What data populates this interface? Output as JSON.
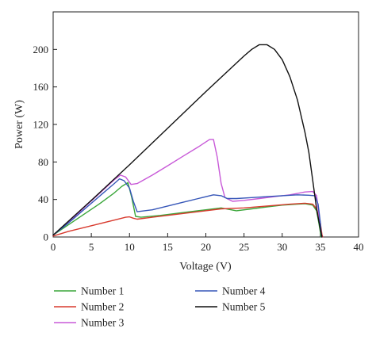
{
  "chart_data": {
    "type": "line",
    "xlabel": "Voltage (V)",
    "ylabel": "Power (W)",
    "xlim": [
      0,
      40
    ],
    "ylim": [
      0,
      240
    ],
    "x_ticks": [
      "0",
      "5",
      "10",
      "15",
      "20",
      "25",
      "30",
      "35",
      "40"
    ],
    "y_ticks": [
      "0",
      "40",
      "80",
      "120",
      "160",
      "200"
    ],
    "legend_placement": "bottom",
    "grid": false,
    "series": [
      {
        "name": "Number 1",
        "color": "#3aa63a",
        "points": [
          [
            0,
            2
          ],
          [
            2,
            13
          ],
          [
            4,
            24
          ],
          [
            6,
            35
          ],
          [
            8,
            47
          ],
          [
            9,
            54
          ],
          [
            9.8,
            58
          ],
          [
            10.3,
            42
          ],
          [
            10.8,
            22
          ],
          [
            11.5,
            21
          ],
          [
            14,
            23
          ],
          [
            17,
            26
          ],
          [
            20,
            29
          ],
          [
            22,
            31
          ],
          [
            24,
            28
          ],
          [
            26,
            30
          ],
          [
            28,
            32
          ],
          [
            30,
            34
          ],
          [
            32,
            35
          ],
          [
            33,
            35.5
          ],
          [
            34,
            34
          ],
          [
            34.5,
            28
          ],
          [
            34.8,
            15
          ],
          [
            35,
            5
          ],
          [
            35.1,
            0
          ]
        ]
      },
      {
        "name": "Number 2",
        "color": "#d83a2e",
        "points": [
          [
            0,
            1
          ],
          [
            2,
            6
          ],
          [
            4,
            10
          ],
          [
            6,
            14
          ],
          [
            8,
            18
          ],
          [
            9.5,
            21
          ],
          [
            10,
            21.5
          ],
          [
            10.5,
            20
          ],
          [
            11,
            19
          ],
          [
            13,
            21
          ],
          [
            16,
            24
          ],
          [
            19,
            27
          ],
          [
            22,
            30
          ],
          [
            25,
            31
          ],
          [
            28,
            33
          ],
          [
            31,
            35
          ],
          [
            33,
            36
          ],
          [
            34,
            35
          ],
          [
            34.5,
            30
          ],
          [
            35,
            15
          ],
          [
            35.2,
            3
          ],
          [
            35.3,
            0
          ]
        ]
      },
      {
        "name": "Number 3",
        "color": "#c85ad8",
        "points": [
          [
            0,
            2
          ],
          [
            2,
            16
          ],
          [
            4,
            31
          ],
          [
            6,
            46
          ],
          [
            8,
            61
          ],
          [
            8.8,
            66
          ],
          [
            9.5,
            64
          ],
          [
            10.2,
            56
          ],
          [
            11,
            57
          ],
          [
            13,
            66
          ],
          [
            15,
            76
          ],
          [
            17,
            86
          ],
          [
            19,
            96
          ],
          [
            20.5,
            104
          ],
          [
            21,
            104
          ],
          [
            21.5,
            85
          ],
          [
            22,
            57
          ],
          [
            22.5,
            42
          ],
          [
            23.5,
            38
          ],
          [
            25,
            39
          ],
          [
            27,
            41
          ],
          [
            29,
            43
          ],
          [
            31,
            45
          ],
          [
            33,
            48
          ],
          [
            34,
            48.5
          ],
          [
            34.5,
            44
          ],
          [
            34.8,
            25
          ],
          [
            35,
            8
          ],
          [
            35.2,
            0
          ]
        ]
      },
      {
        "name": "Number 4",
        "color": "#3656b8",
        "points": [
          [
            0,
            2
          ],
          [
            2,
            15
          ],
          [
            4,
            29
          ],
          [
            6,
            43
          ],
          [
            8,
            57
          ],
          [
            8.7,
            62
          ],
          [
            9.3,
            60
          ],
          [
            10,
            52
          ],
          [
            10.5,
            38
          ],
          [
            11,
            27
          ],
          [
            13,
            29
          ],
          [
            15,
            33
          ],
          [
            17,
            37
          ],
          [
            19,
            41
          ],
          [
            21,
            45
          ],
          [
            22,
            44
          ],
          [
            22.8,
            41
          ],
          [
            24,
            41
          ],
          [
            26,
            42
          ],
          [
            28,
            43
          ],
          [
            30,
            44
          ],
          [
            32,
            45
          ],
          [
            33.5,
            44.5
          ],
          [
            34.3,
            44
          ],
          [
            34.7,
            35
          ],
          [
            35,
            15
          ],
          [
            35.1,
            5
          ],
          [
            35.2,
            0
          ]
        ]
      },
      {
        "name": "Number 5",
        "color": "#111111",
        "points": [
          [
            0,
            2
          ],
          [
            5,
            39
          ],
          [
            10,
            77
          ],
          [
            15,
            116
          ],
          [
            20,
            155
          ],
          [
            25,
            193
          ],
          [
            26,
            200
          ],
          [
            27,
            205
          ],
          [
            28,
            205
          ],
          [
            29,
            200
          ],
          [
            30,
            189
          ],
          [
            31,
            171
          ],
          [
            32,
            146
          ],
          [
            33,
            111
          ],
          [
            33.5,
            90
          ],
          [
            34,
            60
          ],
          [
            34.5,
            30
          ],
          [
            35,
            8
          ],
          [
            35.2,
            0
          ]
        ]
      }
    ]
  }
}
